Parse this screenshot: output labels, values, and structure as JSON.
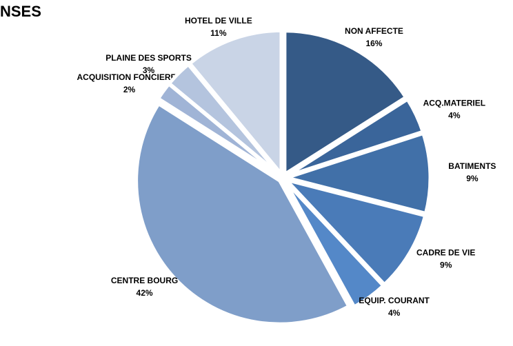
{
  "chart_data": {
    "type": "pie",
    "title": "NSES",
    "categories": [
      "NON AFFECTE",
      "ACQ.MATERIEL",
      "BATIMENTS",
      "CADRE DE VIE",
      "EQUIP. COURANT",
      "CENTRE BOURG",
      "ACQUISITION FONCIERES",
      "PLAINE DES SPORTS",
      "HOTEL DE VILLE"
    ],
    "values": [
      16,
      4,
      9,
      9,
      4,
      42,
      2,
      3,
      11
    ],
    "value_labels": [
      "16%",
      "4%",
      "9%",
      "9%",
      "4%",
      "42%",
      "2%",
      "3%",
      "11%"
    ],
    "colors": [
      "#355a87",
      "#3a659a",
      "#4170a8",
      "#4a7bb8",
      "#5488c8",
      "#7f9ec9",
      "#a0b4d6",
      "#b4c4de",
      "#c9d4e6"
    ]
  }
}
